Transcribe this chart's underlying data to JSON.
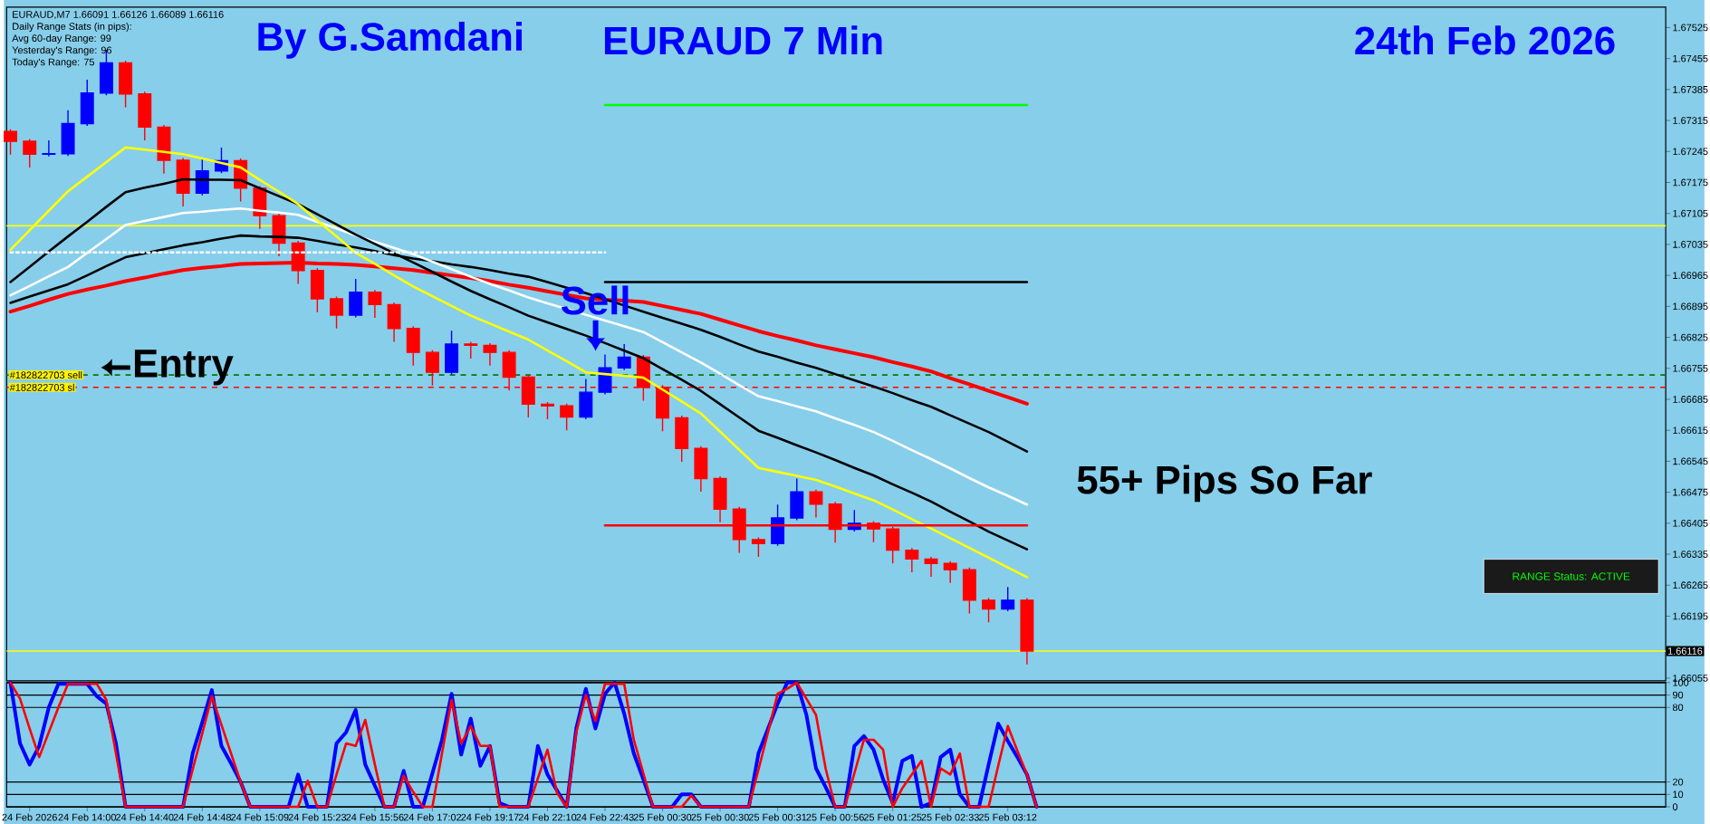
{
  "chart_data": [
    {
      "type": "candlestick",
      "title": "EURAUD 7 Min",
      "categories": [
        null,
        null,
        null,
        null,
        null,
        null,
        null,
        null,
        null,
        null,
        null,
        null,
        null,
        null,
        null,
        null,
        null,
        null,
        null,
        null,
        null,
        null,
        null,
        null,
        null,
        null,
        null,
        null,
        null,
        null,
        null,
        null,
        null,
        null,
        null,
        null,
        null,
        null,
        null,
        null,
        null,
        null,
        null,
        null,
        null,
        null,
        null,
        null,
        null,
        null,
        null,
        null,
        null,
        null
      ],
      "ohlc": [
        [
          1.6729,
          1.67295,
          1.67238,
          1.67268
        ],
        [
          1.67268,
          1.67273,
          1.67209,
          1.67239
        ],
        [
          1.67239,
          1.6727,
          1.67234,
          1.6724
        ],
        [
          1.6724,
          1.67338,
          1.67235,
          1.67308
        ],
        [
          1.67308,
          1.67407,
          1.67303,
          1.67377
        ],
        [
          1.67377,
          1.67475,
          1.67372,
          1.67445
        ],
        [
          1.67445,
          1.6745,
          1.67345,
          1.67375
        ],
        [
          1.67375,
          1.6738,
          1.6727,
          1.673
        ],
        [
          1.673,
          1.67305,
          1.67195,
          1.67225
        ],
        [
          1.67225,
          1.6723,
          1.67121,
          1.67151
        ],
        [
          1.67151,
          1.67231,
          1.67146,
          1.67201
        ],
        [
          1.67201,
          1.67254,
          1.67196,
          1.67224
        ],
        [
          1.67224,
          1.67229,
          1.67132,
          1.67162
        ],
        [
          1.67162,
          1.67167,
          1.6707,
          1.671
        ],
        [
          1.671,
          1.67105,
          1.67008,
          1.67038
        ],
        [
          1.67038,
          1.67043,
          1.66946,
          1.66976
        ],
        [
          1.66976,
          1.66981,
          1.66882,
          1.66912
        ],
        [
          1.66912,
          1.66917,
          1.66845,
          1.66875
        ],
        [
          1.66875,
          1.66957,
          1.6687,
          1.66927
        ],
        [
          1.66927,
          1.66932,
          1.66869,
          1.66899
        ],
        [
          1.66899,
          1.66904,
          1.66815,
          1.66845
        ],
        [
          1.66845,
          1.6685,
          1.66761,
          1.66791
        ],
        [
          1.66791,
          1.66796,
          1.66716,
          1.66746
        ],
        [
          1.66746,
          1.6684,
          1.66741,
          1.6681
        ],
        [
          1.6681,
          1.66815,
          1.66777,
          1.66807
        ],
        [
          1.66807,
          1.66812,
          1.66761,
          1.66791
        ],
        [
          1.66791,
          1.66796,
          1.66705,
          1.66735
        ],
        [
          1.66735,
          1.6674,
          1.66644,
          1.66674
        ],
        [
          1.66674,
          1.66679,
          1.6664,
          1.6667
        ],
        [
          1.6667,
          1.66675,
          1.66615,
          1.66645
        ],
        [
          1.66645,
          1.66731,
          1.6664,
          1.66701
        ],
        [
          1.66701,
          1.66786,
          1.66696,
          1.66756
        ],
        [
          1.66756,
          1.6681,
          1.66751,
          1.6678
        ],
        [
          1.6678,
          1.66785,
          1.66682,
          1.66712
        ],
        [
          1.66712,
          1.66717,
          1.66613,
          1.66643
        ],
        [
          1.66643,
          1.66648,
          1.66544,
          1.66574
        ],
        [
          1.66574,
          1.66579,
          1.66476,
          1.66506
        ],
        [
          1.66506,
          1.66511,
          1.66407,
          1.66437
        ],
        [
          1.66437,
          1.66442,
          1.66338,
          1.66368
        ],
        [
          1.66368,
          1.66373,
          1.66329,
          1.66359
        ],
        [
          1.66359,
          1.66447,
          1.66354,
          1.66417
        ],
        [
          1.66417,
          1.66506,
          1.66412,
          1.66476
        ],
        [
          1.66476,
          1.66481,
          1.66418,
          1.66448
        ],
        [
          1.66448,
          1.66453,
          1.66361,
          1.66391
        ],
        [
          1.66391,
          1.66435,
          1.66386,
          1.66405
        ],
        [
          1.66405,
          1.6641,
          1.66362,
          1.66392
        ],
        [
          1.66392,
          1.66397,
          1.66314,
          1.66344
        ],
        [
          1.66344,
          1.66349,
          1.66294,
          1.66324
        ],
        [
          1.66324,
          1.66329,
          1.66284,
          1.66314
        ],
        [
          1.66314,
          1.66319,
          1.6627,
          1.663
        ],
        [
          1.663,
          1.66305,
          1.66201,
          1.66231
        ],
        [
          1.66231,
          1.66236,
          1.66181,
          1.66211
        ],
        [
          1.66211,
          1.66261,
          1.66206,
          1.66231
        ],
        [
          1.66231,
          1.66236,
          1.66086,
          1.66116
        ]
      ],
      "colors": [
        "#ff0000",
        "#ff0000",
        "#0000ff",
        "#0000ff",
        "#0000ff",
        "#0000ff",
        "#ff0000",
        "#ff0000",
        "#ff0000",
        "#ff0000",
        "#0000ff",
        "#0000ff",
        "#ff0000",
        "#ff0000",
        "#ff0000",
        "#ff0000",
        "#ff0000",
        "#ff0000",
        "#0000ff",
        "#ff0000",
        "#ff0000",
        "#ff0000",
        "#ff0000",
        "#0000ff",
        "#ff0000",
        "#ff0000",
        "#ff0000",
        "#ff0000",
        "#ff0000",
        "#ff0000",
        "#0000ff",
        "#0000ff",
        "#0000ff",
        "#ff0000",
        "#ff0000",
        "#ff0000",
        "#ff0000",
        "#ff0000",
        "#ff0000",
        "#ff0000",
        "#0000ff",
        "#0000ff",
        "#ff0000",
        "#ff0000",
        "#0000ff",
        "#ff0000",
        "#ff0000",
        "#ff0000",
        "#ff0000",
        "#ff0000",
        "#ff0000",
        "#ff0000",
        "#0000ff",
        "#ff0000"
      ],
      "series": [
        {
          "type": "line",
          "color": "#ff0000",
          "values": [
            1.66883,
            1.66896,
            1.6691,
            1.66923,
            1.66933,
            1.66942,
            1.66952,
            1.6696,
            1.66969,
            1.66977,
            1.66982,
            1.66986,
            1.66991,
            1.66992,
            1.66993,
            1.66994,
            1.66992,
            1.66991,
            1.66989,
            1.66985,
            1.66981,
            1.66977,
            1.66971,
            1.66965,
            1.66959,
            1.66952,
            1.66944,
            1.66937,
            1.66929,
            1.66921,
            1.66913,
            1.6691,
            1.66908,
            1.66905,
            1.66896,
            1.66887,
            1.66878,
            1.66865,
            1.66852,
            1.66839,
            1.66828,
            1.66818,
            1.66807,
            1.66798,
            1.66789,
            1.6678,
            1.66769,
            1.66759,
            1.66748,
            1.66733,
            1.66719,
            1.66704,
            1.6669,
            1.66675
          ]
        },
        {
          "type": "line",
          "color": "#000000",
          "values": [
            1.66903,
            1.66917,
            1.66931,
            1.66945,
            1.66965,
            1.66986,
            1.67006,
            1.67015,
            1.67024,
            1.67033,
            1.6704,
            1.67048,
            1.67055,
            1.67053,
            1.67052,
            1.6705,
            1.67043,
            1.67035,
            1.67028,
            1.6702,
            1.67011,
            1.67003,
            1.66997,
            1.6699,
            1.66984,
            1.66977,
            1.66969,
            1.66962,
            1.6695,
            1.66937,
            1.66925,
            1.66911,
            1.66897,
            1.66883,
            1.66869,
            1.66856,
            1.66842,
            1.66826,
            1.66809,
            1.66793,
            1.66781,
            1.66768,
            1.66756,
            1.66742,
            1.66728,
            1.66714,
            1.66699,
            1.66683,
            1.66668,
            1.66649,
            1.6663,
            1.66611,
            1.66589,
            1.66567
          ]
        },
        {
          "type": "line",
          "color": "#ffffff",
          "values": [
            1.6692,
            1.66941,
            1.66963,
            1.66984,
            1.67016,
            1.67047,
            1.67079,
            1.67088,
            1.67097,
            1.67106,
            1.67109,
            1.67113,
            1.67116,
            1.67111,
            1.67107,
            1.67102,
            1.67086,
            1.67071,
            1.67055,
            1.67041,
            1.67027,
            1.67013,
            1.66996,
            1.66979,
            1.66962,
            1.66946,
            1.66931,
            1.66915,
            1.66902,
            1.66889,
            1.66876,
            1.66863,
            1.6685,
            1.66837,
            1.66814,
            1.66791,
            1.66768,
            1.66743,
            1.66717,
            1.66692,
            1.66681,
            1.66669,
            1.66658,
            1.66642,
            1.66627,
            1.66611,
            1.66591,
            1.6657,
            1.6655,
            1.66529,
            1.66507,
            1.66486,
            1.66467,
            1.66447
          ]
        },
        {
          "type": "line",
          "color": "#000000",
          "values": [
            1.6695,
            1.66984,
            1.67019,
            1.67053,
            1.67086,
            1.6712,
            1.67153,
            1.67163,
            1.67172,
            1.67182,
            1.67181,
            1.67181,
            1.6718,
            1.67162,
            1.67144,
            1.67126,
            1.67103,
            1.6708,
            1.67057,
            1.67036,
            1.67015,
            1.66994,
            1.66973,
            1.66951,
            1.6693,
            1.66911,
            1.66893,
            1.66874,
            1.66859,
            1.66844,
            1.66829,
            1.66812,
            1.66795,
            1.66778,
            1.66753,
            1.66729,
            1.66704,
            1.66674,
            1.66644,
            1.66614,
            1.66598,
            1.66581,
            1.66565,
            1.66548,
            1.6653,
            1.66513,
            1.66493,
            1.66474,
            1.66454,
            1.66431,
            1.66409,
            1.66386,
            1.66366,
            1.66346
          ]
        },
        {
          "type": "line",
          "color": "#ffff00",
          "values": [
            1.67023,
            1.67067,
            1.67111,
            1.67155,
            1.67188,
            1.67221,
            1.67254,
            1.67249,
            1.67244,
            1.67239,
            1.67229,
            1.67219,
            1.67209,
            1.67181,
            1.67154,
            1.67126,
            1.67089,
            1.67053,
            1.67016,
            1.66991,
            1.66965,
            1.6694,
            1.66918,
            1.66896,
            1.66874,
            1.66856,
            1.66838,
            1.6682,
            1.66795,
            1.66771,
            1.66746,
            1.66742,
            1.66738,
            1.66734,
            1.66707,
            1.6668,
            1.66653,
            1.66612,
            1.66571,
            1.6653,
            1.66521,
            1.66512,
            1.66503,
            1.66488,
            1.66472,
            1.66457,
            1.66436,
            1.66414,
            1.66393,
            1.66371,
            1.66349,
            1.66327,
            1.66305,
            1.66283
          ]
        },
        {
          "type": "line",
          "color": "#00ff00",
          "values": [
            null,
            null,
            null,
            null,
            null,
            null,
            null,
            null,
            null,
            null,
            null,
            null,
            null,
            null,
            null,
            null,
            null,
            null,
            null,
            null,
            null,
            null,
            null,
            null,
            null,
            null,
            null,
            null,
            null,
            null,
            null,
            1.6735,
            1.6735,
            1.6735,
            1.6735,
            1.6735,
            1.6735,
            1.6735,
            1.6735,
            1.6735,
            1.6735,
            1.6735,
            1.6735,
            1.6735,
            1.6735,
            1.6735,
            1.6735,
            1.6735,
            1.6735,
            1.6735,
            1.6735,
            1.6735,
            1.6735,
            1.6735
          ]
        },
        {
          "type": "line",
          "color": "#000000",
          "values": [
            null,
            null,
            null,
            null,
            null,
            null,
            null,
            null,
            null,
            null,
            null,
            null,
            null,
            null,
            null,
            null,
            null,
            null,
            null,
            null,
            null,
            null,
            null,
            null,
            null,
            null,
            null,
            null,
            null,
            null,
            null,
            1.6695,
            1.6695,
            1.6695,
            1.6695,
            1.6695,
            1.6695,
            1.6695,
            1.6695,
            1.6695,
            1.6695,
            1.6695,
            1.6695,
            1.6695,
            1.6695,
            1.6695,
            1.6695,
            1.6695,
            1.6695,
            1.6695,
            1.6695,
            1.6695,
            1.6695,
            1.6695
          ]
        },
        {
          "type": "line",
          "color": "#ff0000",
          "values": [
            null,
            null,
            null,
            null,
            null,
            null,
            null,
            null,
            null,
            null,
            null,
            null,
            null,
            null,
            null,
            null,
            null,
            null,
            null,
            null,
            null,
            null,
            null,
            null,
            null,
            null,
            null,
            null,
            null,
            null,
            null,
            1.664,
            1.664,
            1.664,
            1.664,
            1.664,
            1.664,
            1.664,
            1.664,
            1.664,
            1.664,
            1.664,
            1.664,
            1.664,
            1.664,
            1.664,
            1.664,
            1.664,
            1.664,
            1.664,
            1.664,
            1.664,
            1.664,
            1.664
          ]
        },
        {
          "type": "line",
          "color": "#ffffff",
          "line_style": "dotted",
          "values": [
            1.67017,
            1.67017,
            1.67017,
            1.67017,
            1.67017,
            1.67017,
            1.67017,
            1.67017,
            1.67017,
            1.67017,
            1.67017,
            1.67017,
            1.67017,
            1.67017,
            1.67017,
            1.67017,
            1.67017,
            1.67017,
            1.67017,
            1.67017,
            1.67017,
            1.67017,
            1.67017,
            1.67017,
            1.67017,
            1.67017,
            1.67017,
            1.67017,
            1.67017,
            1.67017,
            1.67017,
            1.67017,
            null,
            null,
            null,
            null,
            null,
            null,
            null,
            null,
            null,
            null,
            null,
            null,
            null,
            null,
            null,
            null,
            null,
            null,
            null,
            null,
            null,
            null
          ]
        }
      ],
      "ylim": [
        1.66049,
        1.67571
      ],
      "yticks": [
        1.67525,
        1.67455,
        1.67385,
        1.67315,
        1.67245,
        1.67175,
        1.67105,
        1.67035,
        1.66965,
        1.66895,
        1.66825,
        1.66755,
        1.66685,
        1.66615,
        1.66545,
        1.66475,
        1.66405,
        1.66335,
        1.66265,
        1.66195,
        1.66055
      ],
      "tick_labels": "y",
      "ref_lines": [
        {
          "axis": "y",
          "value": 1.6674,
          "label": "#182822703 sell",
          "color": "#008000",
          "line_style": "dashed"
        },
        {
          "axis": "y",
          "value": 1.66712,
          "label": "#182822703 sl",
          "color": "#ff0000",
          "line_style": "dashed"
        },
        {
          "axis": "y",
          "value": 1.66116,
          "label": "1.66116",
          "color": "#ffff00"
        },
        {
          "axis": "y",
          "value": 1.67077,
          "color": "#ffff00"
        }
      ],
      "annotations": [
        "By G.Samdani",
        "24th Feb 2026",
        "EURAUD,M7 1.66091 1.66126 1.66089 1.66116",
        "Daily Range Stats (in pips):",
        "Avg 60-day Range: 99",
        "Yesterday's Range: 96",
        "Today's Range: 75",
        "Sell",
        "Entry",
        "55+ Pips So Far",
        "RANGE Status: ACTIVE"
      ]
    },
    {
      "type": "line",
      "categories": [
        null,
        null,
        "24 Feb 2026",
        null,
        null,
        null,
        null,
        null,
        "24 Feb 14:00",
        null,
        null,
        null,
        null,
        null,
        "24 Feb 14:40",
        null,
        null,
        null,
        null,
        null,
        "24 Feb 14:48",
        null,
        null,
        null,
        null,
        null,
        "24 Feb 15:09",
        null,
        null,
        null,
        null,
        null,
        "24 Feb 15:23",
        null,
        null,
        null,
        null,
        null,
        "24 Feb 15:56",
        null,
        null,
        null,
        null,
        null,
        "24 Feb 17:02",
        null,
        null,
        null,
        null,
        null,
        "24 Feb 19:17",
        null,
        null,
        null,
        null,
        null,
        "24 Feb 22:10",
        null,
        null,
        null,
        null,
        null,
        "24 Feb 22:43",
        null,
        null,
        null,
        null,
        null,
        "25 Feb 00:30",
        null,
        null,
        null,
        null,
        null,
        "25 Feb 00:30",
        null,
        null,
        null,
        null,
        null,
        "25 Feb 00:31",
        null,
        null,
        null,
        null,
        null,
        "25 Feb 00:56",
        null,
        null,
        null,
        null,
        null,
        "25 Feb 01:25",
        null,
        null,
        null,
        null,
        null,
        "25 Feb 02:33",
        null,
        null,
        null,
        null,
        null,
        "25 Feb 03:12",
        null,
        null,
        null
      ],
      "series": [
        {
          "color": "#0000ff",
          "values": [
            100,
            51,
            34,
            49,
            80,
            99,
            99,
            99,
            99,
            89,
            83,
            51,
            0,
            0,
            0,
            0,
            0,
            0,
            0,
            43,
            68,
            94,
            49,
            35,
            20,
            0,
            0,
            0,
            0,
            0,
            26,
            0,
            0,
            0,
            51,
            60,
            78,
            34,
            17,
            0,
            0,
            29,
            0,
            0,
            27,
            54,
            91,
            42,
            71,
            33,
            49,
            3,
            0,
            0,
            0,
            49,
            26,
            13,
            0,
            63,
            95,
            63,
            91,
            100,
            75,
            43,
            22,
            0,
            0,
            0,
            10,
            10,
            0,
            0,
            0,
            0,
            0,
            0,
            43,
            63,
            83,
            100,
            100,
            74,
            31,
            16,
            0,
            0,
            49,
            57,
            46,
            22,
            3,
            37,
            41,
            0,
            3,
            40,
            46,
            10,
            0,
            0,
            34,
            67,
            53,
            40,
            26,
            0
          ]
        },
        {
          "color": "#ff0000",
          "values": [
            100,
            87,
            63,
            40,
            60,
            80,
            99,
            99,
            99,
            99,
            86,
            43,
            0,
            0,
            0,
            0,
            0,
            0,
            0,
            30,
            59,
            89,
            66,
            43,
            20,
            0,
            0,
            0,
            0,
            0,
            0,
            21,
            0,
            0,
            26,
            51,
            49,
            70,
            34,
            0,
            0,
            25,
            12,
            0,
            0,
            43,
            86,
            51,
            65,
            49,
            49,
            0,
            0,
            0,
            0,
            23,
            46,
            11,
            0,
            60,
            90,
            69,
            99,
            99,
            99,
            54,
            27,
            0,
            0,
            0,
            0,
            9,
            0,
            0,
            0,
            0,
            0,
            0,
            30,
            60,
            91,
            95,
            100,
            87,
            74,
            31,
            0,
            0,
            27,
            54,
            54,
            46,
            0,
            15,
            26,
            37,
            0,
            31,
            26,
            43,
            0,
            0,
            0,
            33,
            65,
            45,
            26,
            0
          ]
        }
      ],
      "ylim": [
        0,
        100
      ],
      "yticks": [
        0,
        10,
        20,
        80,
        90,
        100
      ],
      "grid": "y"
    }
  ]
}
